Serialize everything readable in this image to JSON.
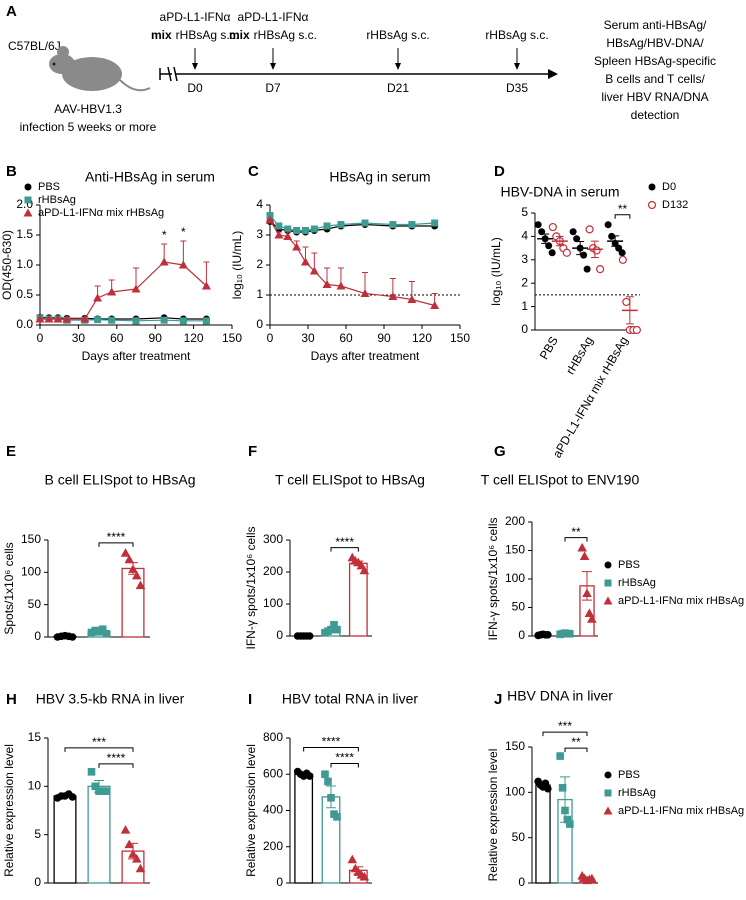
{
  "timeline": {
    "panel": "A",
    "strain": "C57BL/6J",
    "model": [
      "AAV-HBV1.3",
      "infection 5 weeks or more"
    ],
    "events": [
      {
        "line1": "aPD-L1-IFNα",
        "bold": "mix",
        "line2": "rHBsAg s.c.",
        "day": "D0"
      },
      {
        "line1": "aPD-L1-IFNα",
        "bold": "mix",
        "line2": "rHBsAg s.c.",
        "day": "D7"
      },
      {
        "line1": "rHBsAg s.c.",
        "day": "D21"
      },
      {
        "line1": "rHBsAg s.c.",
        "day": "D35"
      }
    ],
    "readout": [
      "Serum anti-HBsAg/",
      "HBsAg/HBV-DNA/",
      "Spleen HBsAg-specific",
      "B cells and T cells/",
      "liver HBV RNA/DNA",
      "detection"
    ]
  },
  "chart_data": [
    {
      "type": "line",
      "panel": "B",
      "title": "Anti-HBsAg in serum",
      "ylabel": "OD(450-630)",
      "xlabel": "Days after treatment",
      "x": [
        0,
        7,
        14,
        21,
        35,
        45,
        56,
        75,
        97,
        112,
        130
      ],
      "xlim": [
        0,
        150
      ],
      "xticks": [
        0,
        30,
        60,
        90,
        120,
        150
      ],
      "ylim": [
        0,
        2
      ],
      "yticks": [
        {
          "value": 0,
          "label": "0.0"
        },
        {
          "value": 0.5,
          "label": "0.5"
        },
        {
          "value": 1,
          "label": "1.0"
        },
        {
          "value": 1.5,
          "label": "1.5"
        },
        {
          "value": 2,
          "label": "2.0"
        }
      ],
      "legend": "upper left",
      "series": [
        {
          "name": "PBS",
          "color": "#000000",
          "marker": "circle",
          "values": [
            0.13,
            0.12,
            0.12,
            0.11,
            0.11,
            0.1,
            0.1,
            0.1,
            0.12,
            0.1,
            0.1
          ]
        },
        {
          "name": "rHBsAg",
          "color": "#3e9a93",
          "marker": "square",
          "values": [
            0.12,
            0.1,
            0.1,
            0.08,
            0.08,
            0.09,
            0.08,
            0.07,
            0.08,
            0.07,
            0.07
          ]
        },
        {
          "name": "aPD-L1-IFNα mix rHBsAg",
          "color": "#c0303a",
          "marker": "triangle",
          "values": [
            0.1,
            0.1,
            0.1,
            0.1,
            0.1,
            0.45,
            0.55,
            0.6,
            1.05,
            1.0,
            0.65
          ],
          "errors": [
            null,
            null,
            null,
            null,
            null,
            0.2,
            0.2,
            0.35,
            0.3,
            0.4,
            0.4
          ]
        }
      ],
      "annotations": [
        {
          "x": 97,
          "text": "*"
        },
        {
          "x": 112,
          "text": "*"
        }
      ]
    },
    {
      "type": "line",
      "panel": "C",
      "title": "HBsAg in serum",
      "ylabel": "log₁₀ (IU/mL)",
      "xlabel": "Days after treatment",
      "x": [
        0,
        7,
        14,
        21,
        28,
        35,
        45,
        56,
        75,
        97,
        112,
        130
      ],
      "xlim": [
        0,
        150
      ],
      "xticks": [
        0,
        30,
        60,
        90,
        120,
        150
      ],
      "ylim": [
        0,
        4
      ],
      "yticks": [
        0,
        1,
        2,
        3,
        4
      ],
      "hline": 1,
      "series": [
        {
          "name": "PBS",
          "color": "#000000",
          "marker": "circle",
          "values": [
            3.45,
            3.2,
            3.15,
            3.1,
            3.1,
            3.15,
            3.2,
            3.3,
            3.35,
            3.3,
            3.3,
            3.3
          ]
        },
        {
          "name": "rHBsAg",
          "color": "#3e9a93",
          "marker": "square",
          "values": [
            3.65,
            3.3,
            3.2,
            3.15,
            3.15,
            3.2,
            3.3,
            3.35,
            3.4,
            3.35,
            3.35,
            3.4
          ]
        },
        {
          "name": "aPD-L1-IFNα mix rHBsAg",
          "color": "#c0303a",
          "marker": "triangle",
          "values": [
            3.5,
            3.0,
            2.95,
            2.6,
            2.1,
            1.8,
            1.35,
            1.3,
            1.05,
            0.95,
            0.85,
            0.65
          ],
          "errors": [
            null,
            0.1,
            0.15,
            0.2,
            0.5,
            0.6,
            0.55,
            0.6,
            0.7,
            0.6,
            0.6,
            0.4
          ]
        }
      ]
    },
    {
      "type": "strip",
      "panel": "D",
      "title": "HBV-DNA in serum",
      "ylabel": "log₁₀ (IU/mL)",
      "categories": [
        "PBS",
        "rHBsAg",
        "aPD-L1-IFNα mix rHBsAg"
      ],
      "ylim": [
        0,
        5
      ],
      "yticks": [
        0,
        1,
        2,
        3,
        4,
        5
      ],
      "hline": 1.5,
      "legend": "right",
      "series": [
        {
          "name": "D0",
          "color": "#000000",
          "marker": "circle",
          "values": [
            [
              4.5,
              4.2,
              3.9,
              3.6,
              3.3
            ],
            [
              4.2,
              3.9,
              3.5,
              3.2,
              2.6
            ],
            [
              4.5,
              4.0,
              3.7,
              3.5,
              3.3
            ]
          ],
          "mean": [
            3.9,
            3.5,
            3.8
          ],
          "sem": [
            0.2,
            0.28,
            0.22
          ]
        },
        {
          "name": "D132",
          "color": "#c0303a",
          "marker": "open-circle",
          "values": [
            [
              4.4,
              4.0,
              3.8,
              3.5,
              3.3
            ],
            [
              4.3,
              3.5,
              3.4,
              2.6
            ],
            [
              3.0,
              1.2,
              0,
              0,
              0
            ]
          ],
          "mean": [
            3.8,
            3.45,
            0.84
          ],
          "sem": [
            0.2,
            0.35,
            0.58
          ]
        }
      ],
      "annotations": [
        {
          "text": "**"
        }
      ]
    },
    {
      "type": "bar",
      "panel": "E",
      "title": "B cell ELISpot to HBsAg",
      "ylabel": "Spots/1x10⁶ cells",
      "ylim": [
        0,
        150
      ],
      "yticks": [
        0,
        50,
        100,
        150
      ],
      "series": [
        {
          "name": "PBS",
          "color": "#000000",
          "marker": "circle",
          "value": 1,
          "sem": 0.5,
          "points": [
            0,
            1,
            2,
            1,
            0
          ]
        },
        {
          "name": "rHBsAg",
          "color": "#3e9a93",
          "marker": "square",
          "value": 8,
          "sem": 1.5,
          "points": [
            7,
            10,
            8,
            12,
            5
          ]
        },
        {
          "name": "aPD-L1-IFNα mix rHBsAg",
          "color": "#c0303a",
          "marker": "triangle",
          "value": 106,
          "sem": 9,
          "points": [
            130,
            120,
            105,
            95,
            80
          ]
        }
      ],
      "annotations": [
        {
          "text": "****"
        }
      ]
    },
    {
      "type": "bar",
      "panel": "F",
      "title": "T cell ELISpot to HBsAg",
      "ylabel": "IFN-γ spots/1x10⁶ cells",
      "ylim": [
        0,
        300
      ],
      "yticks": [
        0,
        100,
        200,
        300
      ],
      "series": [
        {
          "name": "PBS",
          "color": "#000000",
          "marker": "circle",
          "value": 0,
          "sem": 0,
          "points": [
            0,
            0,
            0,
            0,
            0
          ]
        },
        {
          "name": "rHBsAg",
          "color": "#3e9a93",
          "marker": "square",
          "value": 20,
          "sem": 5,
          "points": [
            10,
            15,
            20,
            35,
            20
          ]
        },
        {
          "name": "aPD-L1-IFNα mix rHBsAg",
          "color": "#c0303a",
          "marker": "triangle",
          "value": 227,
          "sem": 7,
          "points": [
            245,
            235,
            230,
            220,
            205
          ]
        }
      ],
      "annotations": [
        {
          "text": "****"
        }
      ]
    },
    {
      "type": "bar",
      "panel": "G",
      "title": "T cell ELISpot to ENV190",
      "ylabel": "IFN-γ spots/1x10⁶ cells",
      "ylim": [
        0,
        200
      ],
      "yticks": [
        0,
        50,
        100,
        150,
        200
      ],
      "legend": "right",
      "series": [
        {
          "name": "PBS",
          "color": "#000000",
          "marker": "circle",
          "value": 2,
          "sem": 0.5,
          "points": [
            1,
            2,
            3,
            2,
            2
          ]
        },
        {
          "name": "rHBsAg",
          "color": "#3e9a93",
          "marker": "square",
          "value": 4,
          "sem": 1,
          "points": [
            3,
            4,
            5,
            4,
            4
          ]
        },
        {
          "name": "aPD-L1-IFNα mix rHBsAg",
          "color": "#c0303a",
          "marker": "triangle",
          "value": 88,
          "sem": 25,
          "points": [
            155,
            140,
            75,
            40,
            30
          ]
        }
      ],
      "annotations": [
        {
          "text": "**"
        }
      ]
    },
    {
      "type": "bar",
      "panel": "H",
      "title": "HBV 3.5-kb RNA in liver",
      "ylabel": "Relative expression level",
      "ylim": [
        0,
        15
      ],
      "yticks": [
        0,
        5,
        10,
        15
      ],
      "series": [
        {
          "name": "PBS",
          "color": "#000000",
          "marker": "circle",
          "value": 9,
          "sem": 0.1,
          "points": [
            8.8,
            9,
            9,
            9.2,
            8.9
          ]
        },
        {
          "name": "rHBsAg",
          "color": "#3e9a93",
          "marker": "square",
          "value": 10,
          "sem": 0.6,
          "points": [
            11.5,
            10,
            9.5,
            9.5,
            9.5
          ]
        },
        {
          "name": "aPD-L1-IFNα mix rHBsAg",
          "color": "#c0303a",
          "marker": "triangle",
          "value": 3.3,
          "sem": 0.8,
          "points": [
            5.5,
            4,
            3,
            2.5,
            1.5
          ]
        }
      ],
      "annotations": [
        {
          "text": "***"
        },
        {
          "text": "****"
        }
      ]
    },
    {
      "type": "bar",
      "panel": "I",
      "title": "HBV total RNA in liver",
      "ylabel": "Relative expression level",
      "ylim": [
        0,
        800
      ],
      "yticks": [
        0,
        200,
        400,
        600,
        800
      ],
      "series": [
        {
          "name": "PBS",
          "color": "#000000",
          "marker": "circle",
          "value": 600,
          "sem": 10,
          "points": [
            615,
            600,
            590,
            605,
            590
          ]
        },
        {
          "name": "rHBsAg",
          "color": "#3e9a93",
          "marker": "square",
          "value": 475,
          "sem": 60,
          "points": [
            600,
            560,
            470,
            380,
            365
          ]
        },
        {
          "name": "aPD-L1-IFNα mix rHBsAg",
          "color": "#c0303a",
          "marker": "triangle",
          "value": 70,
          "sem": 20,
          "points": [
            130,
            80,
            60,
            45,
            35
          ]
        }
      ],
      "annotations": [
        {
          "text": "****"
        },
        {
          "text": "****"
        }
      ]
    },
    {
      "type": "bar",
      "panel": "J",
      "title": "HBV DNA in liver",
      "ylabel": "Relative expression level",
      "ylim": [
        0,
        150
      ],
      "yticks": [
        0,
        50,
        100,
        150
      ],
      "legend": "right",
      "series": [
        {
          "name": "PBS",
          "color": "#000000",
          "marker": "circle",
          "value": 108,
          "sem": 2,
          "points": [
            112,
            108,
            106,
            110,
            104
          ]
        },
        {
          "name": "rHBsAg",
          "color": "#3e9a93",
          "marker": "square",
          "value": 92,
          "sem": 25,
          "points": [
            140,
            105,
            80,
            70,
            65
          ]
        },
        {
          "name": "aPD-L1-IFNα mix rHBsAg",
          "color": "#c0303a",
          "marker": "triangle",
          "value": 5,
          "sem": 1.5,
          "points": [
            8,
            5,
            3,
            4,
            5
          ]
        }
      ],
      "annotations": [
        {
          "text": "***"
        },
        {
          "text": "**"
        }
      ]
    }
  ]
}
